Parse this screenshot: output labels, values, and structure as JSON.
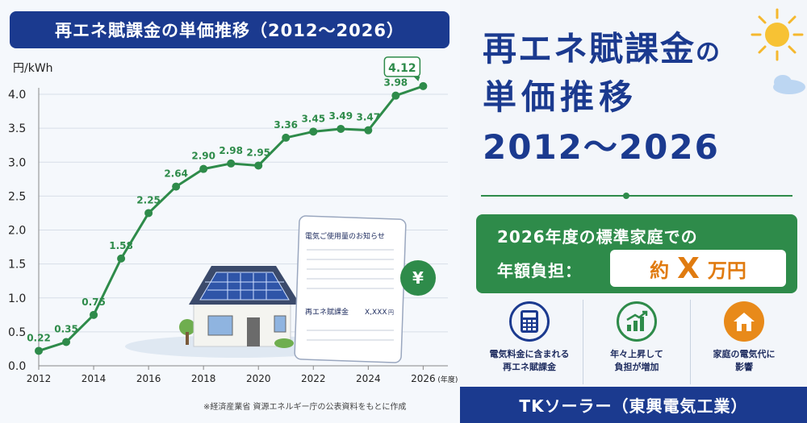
{
  "chart_data": {
    "type": "line",
    "title": "再エネ賦課金の単価推移（2012〜2026）",
    "ylabel": "円/kWh",
    "xlabel_suffix": "(年度)",
    "ylim": [
      0,
      4.0
    ],
    "xlim": [
      2012,
      2026.9
    ],
    "yticks": [
      "0.0",
      "0.5",
      "1.0",
      "1.5",
      "2.0",
      "2.5",
      "3.0",
      "3.5",
      "4.0"
    ],
    "xticks": [
      "2012",
      "2014",
      "2016",
      "2018",
      "2020",
      "2022",
      "2024",
      "2026"
    ],
    "grid": true,
    "points": [
      {
        "x": 2012,
        "y": 0.22,
        "label": "0.22"
      },
      {
        "x": 2013,
        "y": 0.35,
        "label": "0.35"
      },
      {
        "x": 2014,
        "y": 0.75,
        "label": "0.75"
      },
      {
        "x": 2015,
        "y": 1.58,
        "label": "1.58"
      },
      {
        "x": 2016,
        "y": 2.25,
        "label": "2.25"
      },
      {
        "x": 2017,
        "y": 2.64,
        "label": "2.64"
      },
      {
        "x": 2018,
        "y": 2.9,
        "label": "2.90"
      },
      {
        "x": 2019,
        "y": 2.98,
        "label": "2.98"
      },
      {
        "x": 2020,
        "y": 2.95,
        "label": "2.95"
      },
      {
        "x": 2021,
        "y": 3.36,
        "label": "3.36"
      },
      {
        "x": 2022,
        "y": 3.45,
        "label": "3.45"
      },
      {
        "x": 2023,
        "y": 3.49,
        "label": "3.49"
      },
      {
        "x": 2024,
        "y": 3.47,
        "label": "3.47"
      },
      {
        "x": 2025,
        "y": 3.98,
        "label": "3.98"
      },
      {
        "x": 2026,
        "y": 4.12,
        "label": "4.12"
      }
    ],
    "highlight_label": "4.12",
    "line_color": "#2e8b4a"
  },
  "illustration": {
    "notice_title": "電気ご使用量のお知らせ",
    "notice_item": "再エネ賦課金",
    "notice_amount": "X,XXX",
    "notice_unit": "円",
    "yen_symbol": "¥"
  },
  "source_note": "※経済産業省 資源エネルギー庁の公表資料をもとに作成",
  "headline": {
    "line1_main": "再エネ賦課金",
    "line1_small": "の",
    "line2": "単価推移",
    "line3": "2012〜2026"
  },
  "burden": {
    "line1": "2026年度の標準家庭での",
    "line2": "年額負担：",
    "prefix": "約",
    "value": "X",
    "suffix": "万円"
  },
  "features": [
    {
      "text": "電気料金に含まれる\n再エネ賦課金",
      "icon": "calculator-icon",
      "color": "#1b3a8f"
    },
    {
      "text": "年々上昇して\n負担が増加",
      "icon": "chart-up-icon",
      "color": "#2e8b4a"
    },
    {
      "text": "家庭の電気代に\n影響",
      "icon": "house-icon",
      "color": "#e88a1a"
    }
  ],
  "company": "TKソーラー（東興電気工業）",
  "colors": {
    "navy": "#1b3a8f",
    "green": "#2e8b4a",
    "orange": "#e07b10"
  }
}
